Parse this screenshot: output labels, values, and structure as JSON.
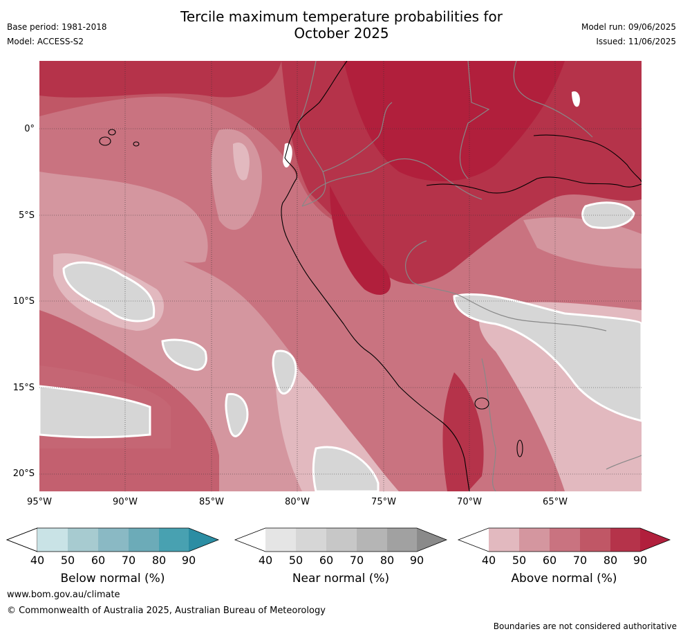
{
  "title_line1": "Tercile maximum temperature probabilities for",
  "title_line2": "October 2025",
  "meta_left": {
    "base_period": "Base period: 1981-2018",
    "model": "Model: ACCESS-S2"
  },
  "meta_right": {
    "model_run": "Model run: 09/06/2025",
    "issued": "Issued: 11/06/2025"
  },
  "map": {
    "region": "Western South America and eastern Pacific",
    "lat_labels": [
      "0°",
      "5°S",
      "10°S",
      "15°S",
      "20°S"
    ],
    "lon_labels": [
      "95°W",
      "90°W",
      "85°W",
      "80°W",
      "75°W",
      "70°W",
      "65°W"
    ],
    "grid": "dotted",
    "colors": {
      "land_border": "#7a7a7a",
      "coastline": "#000000",
      "near_normal_outline": "#ffffff"
    }
  },
  "colorbars": [
    {
      "label": "Below normal (%)",
      "ticks": [
        "40",
        "50",
        "60",
        "70",
        "80",
        "90"
      ],
      "colors": [
        "#c9e3e6",
        "#a7cbd0",
        "#8ab9c4",
        "#6cabb8",
        "#48a1b1",
        "#2b8da3"
      ]
    },
    {
      "label": "Near normal (%)",
      "ticks": [
        "40",
        "50",
        "60",
        "70",
        "80",
        "90"
      ],
      "colors": [
        "#e5e5e5",
        "#d6d6d6",
        "#c7c7c7",
        "#b5b5b5",
        "#a1a1a1",
        "#8a8a8a"
      ]
    },
    {
      "label": "Above normal (%)",
      "ticks": [
        "40",
        "50",
        "60",
        "70",
        "80",
        "90"
      ],
      "colors": [
        "#e2b9bf",
        "#d4969f",
        "#c97380",
        "#c05766",
        "#b5334a",
        "#b11f3c"
      ]
    }
  ],
  "footer": {
    "site": "www.bom.gov.au/climate",
    "copyright": "© Commonwealth of Australia 2025, Australian Bureau of Meteorology",
    "disclaimer": "Boundaries are not considered authoritative"
  }
}
